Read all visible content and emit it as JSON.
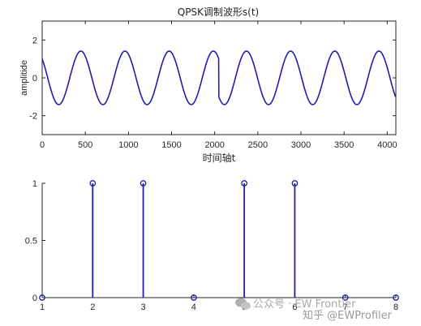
{
  "chart_data": [
    {
      "type": "line",
      "title": "QPSK调制波形s(t)",
      "xlabel": "时间轴t",
      "ylabel": "amplitide",
      "xlim": [
        0,
        4100
      ],
      "ylim": [
        -3,
        3
      ],
      "xticks": [
        "0",
        "500",
        "1000",
        "1500",
        "2000",
        "2500",
        "3000",
        "3500",
        "4000"
      ],
      "xtick_values": [
        0,
        500,
        1000,
        1500,
        2000,
        2500,
        3000,
        3500,
        4000
      ],
      "yticks": [
        "-2",
        "0",
        "2"
      ],
      "ytick_values": [
        -2,
        0,
        2
      ],
      "amplitude": 1.414,
      "period": 512,
      "symbol_length": 1024,
      "symbol_phases_deg": [
        45,
        45,
        135,
        135
      ],
      "series_color": "#1f1fa8",
      "grid": false
    },
    {
      "type": "stem",
      "title": "",
      "xlabel": "",
      "ylabel": "",
      "x": [
        1,
        2,
        3,
        4,
        5,
        6,
        7,
        8
      ],
      "values": [
        0,
        1,
        1,
        0,
        1,
        1,
        0,
        0
      ],
      "xlim": [
        1,
        8
      ],
      "ylim": [
        0,
        1
      ],
      "xticks": [
        "1",
        "2",
        "3",
        "4",
        "5",
        "6",
        "7",
        "8"
      ],
      "yticks": [
        "0",
        "0.5",
        "1"
      ],
      "ytick_values": [
        0,
        0.5,
        1
      ],
      "series_color": "#1f1fa8",
      "grid": false
    }
  ],
  "watermark": {
    "text": "知乎 @EWProfiler",
    "faded_text": "公众号 · EW Frontier"
  }
}
